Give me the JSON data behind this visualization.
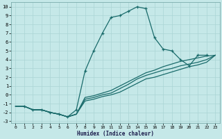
{
  "xlabel": "Humidex (Indice chaleur)",
  "xlim": [
    -0.5,
    23.5
  ],
  "ylim": [
    -3.2,
    10.5
  ],
  "xticks": [
    0,
    1,
    2,
    3,
    4,
    5,
    6,
    7,
    8,
    9,
    10,
    11,
    12,
    13,
    14,
    15,
    16,
    17,
    18,
    19,
    20,
    21,
    22,
    23
  ],
  "yticks": [
    -3,
    -2,
    -1,
    0,
    1,
    2,
    3,
    4,
    5,
    6,
    7,
    8,
    9,
    10
  ],
  "bg_color": "#c5e8e8",
  "grid_color": "#aad4d4",
  "line_color": "#1a6b6b",
  "curve_main_x": [
    1,
    2,
    3,
    4,
    5,
    6,
    7,
    8,
    9,
    10,
    11,
    12,
    13,
    14,
    15,
    16,
    17,
    18,
    19,
    20,
    21,
    22
  ],
  "curve_main_y": [
    -1.3,
    -1.7,
    -1.7,
    -2.0,
    -2.2,
    -2.5,
    -1.7,
    2.7,
    5.0,
    7.0,
    8.8,
    9.0,
    9.5,
    10.0,
    9.8,
    6.5,
    5.2,
    5.0,
    4.0,
    3.3,
    4.5,
    4.5
  ],
  "curve_line1_x": [
    0,
    1,
    2,
    3,
    4,
    5,
    6,
    7,
    8,
    9,
    10,
    11,
    12,
    13,
    14,
    15,
    16,
    17,
    18,
    19,
    20,
    21,
    22,
    23
  ],
  "curve_line1_y": [
    -1.3,
    -1.3,
    -1.7,
    -1.7,
    -2.0,
    -2.2,
    -2.5,
    -2.2,
    -0.3,
    -0.1,
    0.2,
    0.5,
    1.0,
    1.5,
    2.0,
    2.5,
    2.8,
    3.2,
    3.5,
    3.8,
    4.0,
    4.2,
    4.4,
    4.5
  ],
  "curve_line2_x": [
    0,
    1,
    2,
    3,
    4,
    5,
    6,
    7,
    8,
    9,
    10,
    11,
    12,
    13,
    14,
    15,
    16,
    17,
    18,
    19,
    20,
    21,
    22,
    23
  ],
  "curve_line2_y": [
    -1.3,
    -1.3,
    -1.7,
    -1.7,
    -2.0,
    -2.2,
    -2.5,
    -2.2,
    -0.5,
    -0.3,
    0.0,
    0.2,
    0.7,
    1.2,
    1.8,
    2.2,
    2.5,
    2.8,
    3.0,
    3.3,
    3.5,
    3.7,
    4.0,
    4.5
  ],
  "curve_line3_x": [
    0,
    1,
    2,
    3,
    4,
    5,
    6,
    7,
    8,
    9,
    10,
    11,
    12,
    13,
    14,
    15,
    16,
    17,
    18,
    19,
    20,
    21,
    22,
    23
  ],
  "curve_line3_y": [
    -1.3,
    -1.3,
    -1.7,
    -1.7,
    -2.0,
    -2.2,
    -2.5,
    -2.2,
    -0.7,
    -0.5,
    -0.2,
    0.0,
    0.3,
    0.8,
    1.3,
    1.8,
    2.0,
    2.3,
    2.6,
    2.9,
    3.2,
    3.4,
    3.7,
    4.5
  ]
}
